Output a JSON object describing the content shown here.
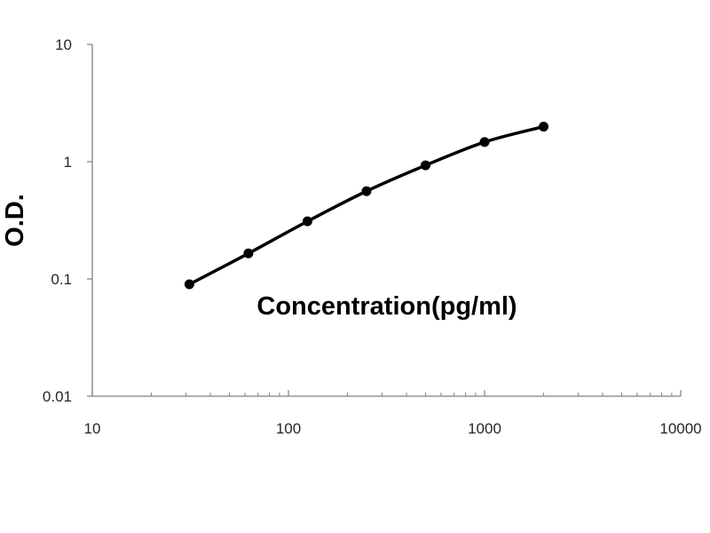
{
  "chart_data": {
    "type": "scatter",
    "title": "",
    "xlabel": "Concentration(pg/ml)",
    "ylabel": "O.D.",
    "x_scale": "log",
    "y_scale": "log",
    "xlim": [
      10,
      10000
    ],
    "ylim": [
      0.01,
      10
    ],
    "x_ticks": [
      "10",
      "100",
      "1000",
      "10000"
    ],
    "y_ticks": [
      "10",
      "1",
      "0.1",
      "0.01"
    ],
    "grid": false,
    "legend": "none",
    "series": [
      {
        "x": [
          31.25,
          62.5,
          125,
          250,
          500,
          1000,
          2000
        ],
        "y": [
          0.09,
          0.165,
          0.31,
          0.56,
          0.93,
          1.47,
          1.99
        ],
        "marker": "circle",
        "line": "smooth",
        "color": "#000000"
      }
    ]
  }
}
